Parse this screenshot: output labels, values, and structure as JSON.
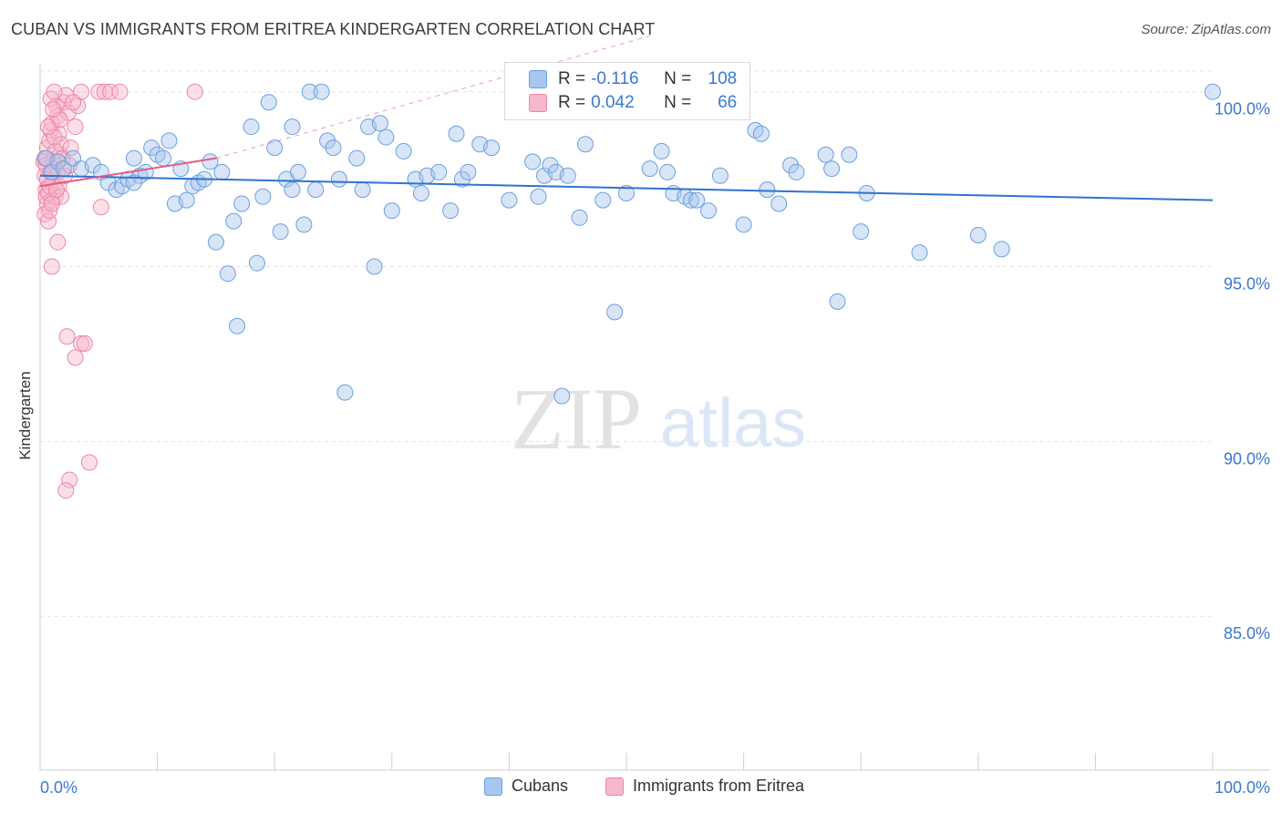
{
  "header": {
    "title": "CUBAN VS IMMIGRANTS FROM ERITREA KINDERGARTEN CORRELATION CHART",
    "source": "Source: ZipAtlas.com"
  },
  "watermark": {
    "zip": "ZIP",
    "atlas": "atlas"
  },
  "legend": {
    "r_label": "R =",
    "n_label": "N =",
    "series": [
      {
        "name": "Cubans",
        "r": "-0.116",
        "n": "108"
      },
      {
        "name": "Immigrants from Eritrea",
        "r": "0.042",
        "n": "66"
      }
    ]
  },
  "colors": {
    "blue_fill": "#a9c6ee",
    "blue_stroke": "#6b9fdf",
    "blue_line": "#2f73d0",
    "pink_fill": "#f6b8cb",
    "pink_stroke": "#ee86a6",
    "pink_line": "#e45c88",
    "value_text": "#3b78d6",
    "grid": "#e3e3e3"
  },
  "chart_data": {
    "type": "scatter",
    "title": "CUBAN VS IMMIGRANTS FROM ERITREA KINDERGARTEN CORRELATION CHART",
    "xlabel": "",
    "ylabel": "Kindergarten",
    "xlim": [
      0,
      100
    ],
    "ylim": [
      80.6,
      100.8
    ],
    "x_tick_labels": [
      "0.0%",
      "100.0%"
    ],
    "y_ticks": [
      100,
      95,
      90,
      85
    ],
    "y_tick_labels": [
      "100.0%",
      "95.0%",
      "90.0%",
      "85.0%"
    ],
    "grid": true,
    "series": [
      {
        "name": "Cubans",
        "trend": {
          "x": [
            0,
            100
          ],
          "y": [
            97.6,
            96.9
          ]
        },
        "points": [
          [
            0.5,
            98.1
          ],
          [
            1.0,
            97.7
          ],
          [
            1.5,
            98.0
          ],
          [
            2.0,
            97.8
          ],
          [
            2.8,
            98.1
          ],
          [
            3.5,
            97.8
          ],
          [
            4.5,
            97.9
          ],
          [
            5.2,
            97.7
          ],
          [
            5.8,
            97.4
          ],
          [
            6.5,
            97.2
          ],
          [
            7.0,
            97.3
          ],
          [
            7.5,
            97.5
          ],
          [
            8.0,
            98.1
          ],
          [
            8.5,
            97.6
          ],
          [
            9.0,
            97.7
          ],
          [
            9.5,
            98.4
          ],
          [
            10.0,
            98.2
          ],
          [
            10.5,
            98.1
          ],
          [
            11.0,
            98.6
          ],
          [
            11.5,
            96.8
          ],
          [
            12.0,
            97.8
          ],
          [
            12.5,
            96.9
          ],
          [
            13.0,
            97.3
          ],
          [
            13.5,
            97.4
          ],
          [
            14.0,
            97.5
          ],
          [
            14.5,
            98.0
          ],
          [
            15.0,
            95.7
          ],
          [
            15.5,
            97.7
          ],
          [
            16.0,
            94.8
          ],
          [
            16.5,
            96.3
          ],
          [
            16.8,
            93.3
          ],
          [
            17.2,
            96.8
          ],
          [
            18.0,
            99.0
          ],
          [
            18.5,
            95.1
          ],
          [
            19.0,
            97.0
          ],
          [
            19.5,
            99.7
          ],
          [
            20.0,
            98.4
          ],
          [
            20.5,
            96.0
          ],
          [
            21.0,
            97.5
          ],
          [
            21.5,
            99.0
          ],
          [
            22.0,
            97.7
          ],
          [
            22.5,
            96.2
          ],
          [
            23.0,
            100.0
          ],
          [
            23.5,
            97.2
          ],
          [
            24.0,
            100.0
          ],
          [
            24.5,
            98.6
          ],
          [
            25.0,
            98.4
          ],
          [
            25.5,
            97.5
          ],
          [
            26.0,
            91.4
          ],
          [
            27.0,
            98.1
          ],
          [
            27.5,
            97.2
          ],
          [
            28.0,
            99.0
          ],
          [
            28.5,
            95.0
          ],
          [
            29.0,
            99.1
          ],
          [
            29.5,
            98.7
          ],
          [
            30.0,
            96.6
          ],
          [
            31.0,
            98.3
          ],
          [
            32.0,
            97.5
          ],
          [
            32.5,
            97.1
          ],
          [
            33.0,
            97.6
          ],
          [
            34.0,
            97.7
          ],
          [
            35.0,
            96.6
          ],
          [
            35.5,
            98.8
          ],
          [
            36.0,
            97.5
          ],
          [
            36.5,
            97.7
          ],
          [
            37.5,
            98.5
          ],
          [
            38.5,
            98.4
          ],
          [
            40.0,
            96.9
          ],
          [
            42.0,
            98.0
          ],
          [
            42.5,
            97.0
          ],
          [
            43.0,
            97.6
          ],
          [
            43.5,
            97.9
          ],
          [
            44.0,
            97.7
          ],
          [
            44.5,
            91.3
          ],
          [
            45.0,
            97.6
          ],
          [
            46.0,
            96.4
          ],
          [
            46.5,
            98.5
          ],
          [
            48.0,
            96.9
          ],
          [
            49.0,
            93.7
          ],
          [
            52.0,
            97.8
          ],
          [
            53.0,
            98.3
          ],
          [
            53.5,
            97.7
          ],
          [
            54.0,
            97.1
          ],
          [
            55.0,
            97.0
          ],
          [
            55.5,
            96.9
          ],
          [
            57.0,
            96.6
          ],
          [
            58.0,
            97.6
          ],
          [
            60.0,
            96.2
          ],
          [
            61.0,
            98.9
          ],
          [
            61.5,
            98.8
          ],
          [
            62.0,
            97.2
          ],
          [
            63.0,
            96.8
          ],
          [
            64.0,
            97.9
          ],
          [
            64.5,
            97.7
          ],
          [
            67.0,
            98.2
          ],
          [
            67.5,
            97.8
          ],
          [
            68.0,
            94.0
          ],
          [
            69.0,
            98.2
          ],
          [
            70.0,
            96.0
          ],
          [
            70.5,
            97.1
          ],
          [
            75.0,
            95.4
          ],
          [
            80.0,
            95.9
          ],
          [
            82.0,
            95.5
          ],
          [
            100.0,
            100.0
          ],
          [
            8.0,
            97.4
          ],
          [
            21.5,
            97.2
          ],
          [
            50.0,
            97.1
          ],
          [
            56.0,
            96.9
          ]
        ]
      },
      {
        "name": "Immigrants from Eritrea",
        "trend": {
          "x": [
            0,
            15
          ],
          "y": [
            97.3,
            98.1
          ]
        },
        "points": [
          [
            0.3,
            98.0
          ],
          [
            0.4,
            97.6
          ],
          [
            0.5,
            97.2
          ],
          [
            0.6,
            96.8
          ],
          [
            0.4,
            96.5
          ],
          [
            0.7,
            96.3
          ],
          [
            0.5,
            97.0
          ],
          [
            0.6,
            98.4
          ],
          [
            0.8,
            98.6
          ],
          [
            0.9,
            98.9
          ],
          [
            1.0,
            99.1
          ],
          [
            1.1,
            97.8
          ],
          [
            1.2,
            97.4
          ],
          [
            1.3,
            97.0
          ],
          [
            1.0,
            96.9
          ],
          [
            0.8,
            96.6
          ],
          [
            1.4,
            99.6
          ],
          [
            1.5,
            99.3
          ],
          [
            1.6,
            98.8
          ],
          [
            1.7,
            98.2
          ],
          [
            1.8,
            98.5
          ],
          [
            2.0,
            99.7
          ],
          [
            2.2,
            99.9
          ],
          [
            2.4,
            99.4
          ],
          [
            1.5,
            97.7
          ],
          [
            1.6,
            97.3
          ],
          [
            1.8,
            97.0
          ],
          [
            0.5,
            97.9
          ],
          [
            0.6,
            97.5
          ],
          [
            0.7,
            97.1
          ],
          [
            0.9,
            99.8
          ],
          [
            1.2,
            100.0
          ],
          [
            1.3,
            98.3
          ],
          [
            1.1,
            98.0
          ],
          [
            0.9,
            97.7
          ],
          [
            0.8,
            97.3
          ],
          [
            1.0,
            96.8
          ],
          [
            1.9,
            98.1
          ],
          [
            2.1,
            97.6
          ],
          [
            2.5,
            97.9
          ],
          [
            3.0,
            99.0
          ],
          [
            3.2,
            99.6
          ],
          [
            3.5,
            100.0
          ],
          [
            5.0,
            100.0
          ],
          [
            5.5,
            100.0
          ],
          [
            6.0,
            100.0
          ],
          [
            6.8,
            100.0
          ],
          [
            13.2,
            100.0
          ],
          [
            5.2,
            96.7
          ],
          [
            1.5,
            95.7
          ],
          [
            1.0,
            95.0
          ],
          [
            2.3,
            93.0
          ],
          [
            3.5,
            92.8
          ],
          [
            3.8,
            92.8
          ],
          [
            3.0,
            92.4
          ],
          [
            2.5,
            88.9
          ],
          [
            2.2,
            88.6
          ],
          [
            4.2,
            89.4
          ],
          [
            1.2,
            98.7
          ],
          [
            0.7,
            99.0
          ],
          [
            1.7,
            99.2
          ],
          [
            2.6,
            98.4
          ],
          [
            0.4,
            98.1
          ],
          [
            1.4,
            97.2
          ],
          [
            2.8,
            99.7
          ],
          [
            1.1,
            99.5
          ]
        ]
      }
    ]
  }
}
